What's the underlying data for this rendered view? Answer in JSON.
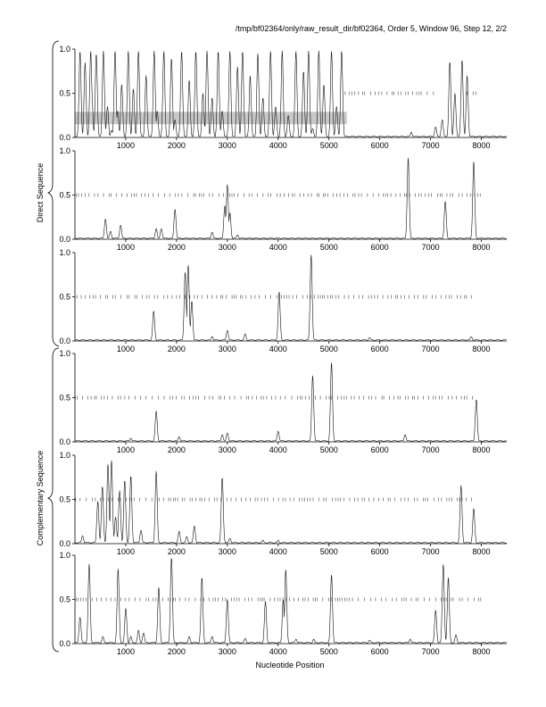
{
  "figure": {
    "title": "/tmp/bf02364/only/raw_result_dir/bf02364, Order 5, Window 96, Step 12, 2/2",
    "xlabel": "Nucleotide Position",
    "group_labels": [
      "Direct Sequence",
      "Complementary Sequence"
    ]
  },
  "chart_data": {
    "type": "line",
    "x_axis": {
      "range": [
        0,
        8500
      ],
      "ticks": [
        1000,
        2000,
        3000,
        4000,
        5000,
        6000,
        7000,
        8000
      ]
    },
    "y_axis": {
      "range": [
        0,
        1
      ],
      "ticks": [
        0,
        0.5,
        1
      ],
      "tick_labels": [
        "0.0",
        "0.5",
        "1.0"
      ]
    },
    "colors": {
      "trace": "#111111",
      "tick_marks": "#444444",
      "shade": "#c8c8c8"
    },
    "panels": [
      {
        "group": "Direct Sequence",
        "shaded_region": {
          "x": [
            0,
            5350
          ],
          "y": [
            0.15,
            0.29
          ]
        },
        "tick_row": {
          "y": 0.5,
          "ranges": [
            [
              5300,
              7100
            ],
            [
              7700,
              7900
            ]
          ]
        },
        "peaks": [
          [
            100,
            0.98
          ],
          [
            200,
            0.85
          ],
          [
            310,
            0.98
          ],
          [
            330,
            0.55
          ],
          [
            420,
            0.95
          ],
          [
            560,
            0.98
          ],
          [
            640,
            0.35
          ],
          [
            720,
            0.08
          ],
          [
            790,
            0.98
          ],
          [
            840,
            0.3
          ],
          [
            920,
            0.6
          ],
          [
            1050,
            0.98
          ],
          [
            1150,
            0.55
          ],
          [
            1250,
            0.98
          ],
          [
            1400,
            0.7
          ],
          [
            1560,
            0.98
          ],
          [
            1620,
            0.3
          ],
          [
            1750,
            0.98
          ],
          [
            1900,
            0.9
          ],
          [
            1970,
            0.2
          ],
          [
            2100,
            0.98
          ],
          [
            2250,
            0.65
          ],
          [
            2380,
            0.98
          ],
          [
            2520,
            0.5
          ],
          [
            2600,
            0.98
          ],
          [
            2700,
            0.45
          ],
          [
            2820,
            0.98
          ],
          [
            2900,
            0.3
          ],
          [
            3050,
            0.98
          ],
          [
            3200,
            0.8
          ],
          [
            3300,
            0.98
          ],
          [
            3450,
            0.7
          ],
          [
            3600,
            0.95
          ],
          [
            3700,
            0.45
          ],
          [
            3850,
            0.98
          ],
          [
            3950,
            0.35
          ],
          [
            4080,
            0.98
          ],
          [
            4200,
            0.25
          ],
          [
            4350,
            0.98
          ],
          [
            4500,
            0.75
          ],
          [
            4600,
            0.98
          ],
          [
            4680,
            0.1
          ],
          [
            4800,
            0.98
          ],
          [
            4900,
            0.6
          ],
          [
            5050,
            0.98
          ],
          [
            5150,
            0.35
          ],
          [
            5250,
            0.98
          ],
          [
            6620,
            0.06
          ],
          [
            7100,
            0.12
          ],
          [
            7230,
            0.2
          ],
          [
            7380,
            0.86
          ],
          [
            7480,
            0.5
          ],
          [
            7620,
            0.88
          ],
          [
            7720,
            0.7
          ]
        ]
      },
      {
        "group": "Direct Sequence",
        "tick_row": {
          "y": 0.5,
          "ranges": [
            [
              0,
              8000
            ]
          ]
        },
        "peaks": [
          [
            600,
            0.23
          ],
          [
            700,
            0.09
          ],
          [
            900,
            0.16
          ],
          [
            1600,
            0.12
          ],
          [
            1700,
            0.12
          ],
          [
            1970,
            0.34
          ],
          [
            2700,
            0.08
          ],
          [
            2950,
            0.38
          ],
          [
            3000,
            0.62
          ],
          [
            3050,
            0.3
          ],
          [
            3200,
            0.05
          ],
          [
            6560,
            0.92
          ],
          [
            7290,
            0.43
          ],
          [
            7850,
            0.88
          ]
        ]
      },
      {
        "group": "Direct Sequence",
        "tick_row": {
          "y": 0.5,
          "ranges": [
            [
              0,
              7850
            ]
          ]
        },
        "peaks": [
          [
            1550,
            0.34
          ],
          [
            2170,
            0.78
          ],
          [
            2230,
            0.86
          ],
          [
            2300,
            0.45
          ],
          [
            2700,
            0.05
          ],
          [
            3000,
            0.12
          ],
          [
            3350,
            0.08
          ],
          [
            4020,
            0.56
          ],
          [
            4650,
            0.98
          ],
          [
            5800,
            0.04
          ],
          [
            7800,
            0.05
          ]
        ]
      },
      {
        "group": "Complementary Sequence",
        "tick_row": {
          "y": 0.5,
          "ranges": [
            [
              0,
              7850
            ]
          ]
        },
        "peaks": [
          [
            1100,
            0.04
          ],
          [
            1600,
            0.35
          ],
          [
            2050,
            0.06
          ],
          [
            2900,
            0.08
          ],
          [
            3000,
            0.1
          ],
          [
            4000,
            0.12
          ],
          [
            4680,
            0.75
          ],
          [
            5050,
            0.9
          ],
          [
            6500,
            0.08
          ],
          [
            7900,
            0.48
          ]
        ]
      },
      {
        "group": "Complementary Sequence",
        "tick_row": {
          "y": 0.5,
          "ranges": [
            [
              0,
              7900
            ]
          ]
        },
        "peaks": [
          [
            150,
            0.09
          ],
          [
            450,
            0.48
          ],
          [
            540,
            0.65
          ],
          [
            650,
            0.9
          ],
          [
            720,
            0.94
          ],
          [
            800,
            0.3
          ],
          [
            880,
            0.6
          ],
          [
            980,
            0.72
          ],
          [
            1100,
            0.77
          ],
          [
            1300,
            0.15
          ],
          [
            1600,
            0.82
          ],
          [
            2050,
            0.14
          ],
          [
            2200,
            0.08
          ],
          [
            2350,
            0.2
          ],
          [
            2900,
            0.75
          ],
          [
            3050,
            0.06
          ],
          [
            3700,
            0.04
          ],
          [
            4000,
            0.04
          ],
          [
            7600,
            0.66
          ],
          [
            7850,
            0.4
          ]
        ]
      },
      {
        "group": "Complementary Sequence",
        "tick_row": {
          "y": 0.5,
          "ranges": [
            [
              0,
              8000
            ]
          ]
        },
        "peaks": [
          [
            100,
            0.3
          ],
          [
            280,
            0.9
          ],
          [
            550,
            0.08
          ],
          [
            850,
            0.85
          ],
          [
            1000,
            0.4
          ],
          [
            1100,
            0.08
          ],
          [
            1250,
            0.15
          ],
          [
            1350,
            0.12
          ],
          [
            1650,
            0.64
          ],
          [
            1900,
            0.98
          ],
          [
            2250,
            0.08
          ],
          [
            2500,
            0.75
          ],
          [
            2700,
            0.08
          ],
          [
            3000,
            0.5
          ],
          [
            3350,
            0.06
          ],
          [
            3750,
            0.48
          ],
          [
            4100,
            0.5
          ],
          [
            4150,
            0.84
          ],
          [
            4350,
            0.05
          ],
          [
            4700,
            0.05
          ],
          [
            5050,
            0.78
          ],
          [
            5800,
            0.04
          ],
          [
            6600,
            0.05
          ],
          [
            7100,
            0.38
          ],
          [
            7250,
            0.9
          ],
          [
            7350,
            0.75
          ],
          [
            7500,
            0.1
          ]
        ]
      }
    ]
  }
}
